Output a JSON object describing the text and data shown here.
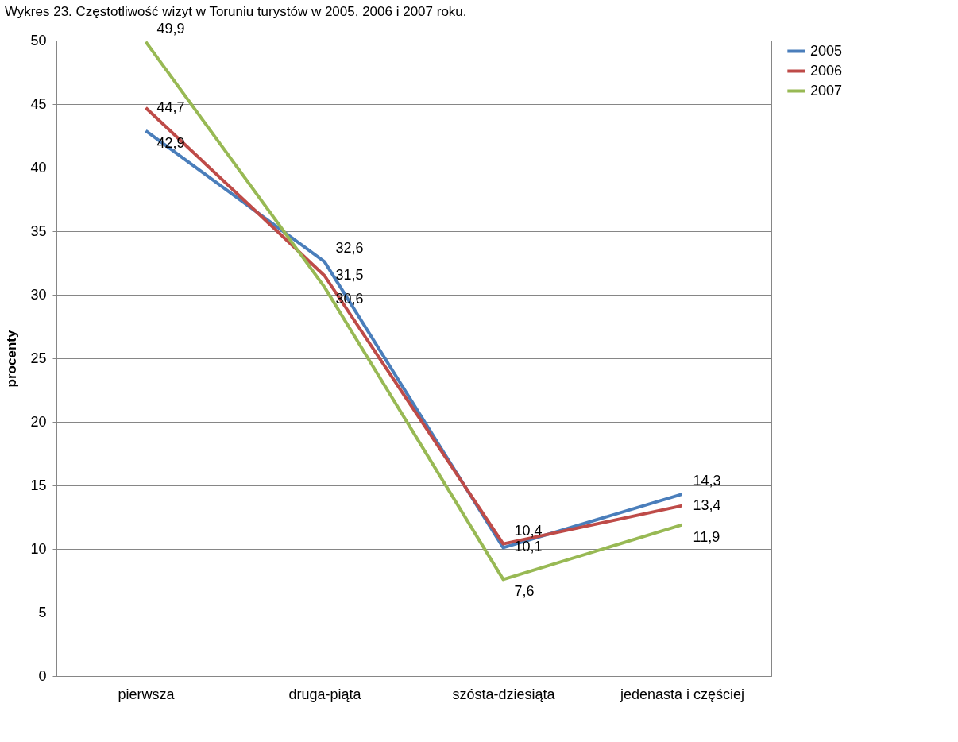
{
  "chart_data": {
    "type": "line",
    "title": "Wykres 23. Częstotliwość wizyt w Toruniu turystów w 2005, 2006 i 2007 roku.",
    "ylabel": "procenty",
    "categories": [
      "pierwsza",
      "druga-piąta",
      "szósta-dziesiąta",
      "jedenasta i częściej"
    ],
    "series": [
      {
        "name": "2005",
        "color": "#4a7ebb",
        "values": [
          42.9,
          32.6,
          10.1,
          14.3
        ],
        "value_labels": [
          "42,9",
          "32,6",
          "10,1",
          "14,3"
        ]
      },
      {
        "name": "2006",
        "color": "#be4b48",
        "values": [
          44.7,
          31.5,
          10.4,
          13.4
        ],
        "value_labels": [
          "44,7",
          "31,5",
          "10,4",
          "13,4"
        ]
      },
      {
        "name": "2007",
        "color": "#98b954",
        "values": [
          49.9,
          30.6,
          7.6,
          11.9
        ],
        "value_labels": [
          "49,9",
          "30,6",
          "7,6",
          "11,9"
        ]
      }
    ],
    "ylim": [
      0,
      50
    ],
    "yticks": [
      0,
      5,
      10,
      15,
      20,
      25,
      30,
      35,
      40,
      45,
      50
    ],
    "grid": "y",
    "legend": "right",
    "marker": "none",
    "line_style": "solid"
  }
}
